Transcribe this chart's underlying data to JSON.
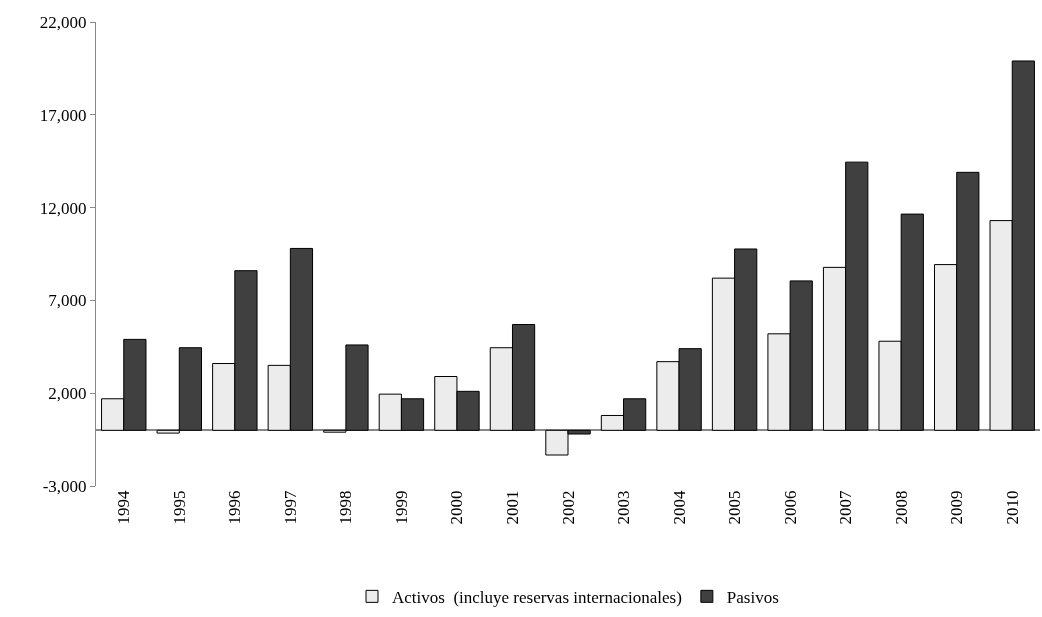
{
  "chart_data": {
    "type": "bar",
    "categories": [
      "1994",
      "1995",
      "1996",
      "1997",
      "1998",
      "1999",
      "2000",
      "2001",
      "2002",
      "2003",
      "2004",
      "2005",
      "2006",
      "2007",
      "2008",
      "2009",
      "2010"
    ],
    "series": [
      {
        "name": "Activos  (incluye reservas internacionales)",
        "color": "#ececec",
        "values": [
          1700,
          -150,
          3600,
          3500,
          -100,
          1950,
          2900,
          4450,
          -1330,
          800,
          3700,
          8200,
          5200,
          8780,
          4800,
          8930,
          11300
        ]
      },
      {
        "name": "Pasivos",
        "color": "#404040",
        "values": [
          4900,
          4450,
          8600,
          9800,
          4600,
          1700,
          2100,
          5700,
          -200,
          1700,
          4400,
          9770,
          8050,
          14450,
          11650,
          13900,
          19900
        ]
      }
    ],
    "ylim": [
      -3000,
      22000
    ],
    "yticks": [
      {
        "value": -3000,
        "label": "-3,000"
      },
      {
        "value": 2000,
        "label": "2,000"
      },
      {
        "value": 7000,
        "label": "7,000"
      },
      {
        "value": 12000,
        "label": "12,000"
      },
      {
        "value": 17000,
        "label": "17,000"
      },
      {
        "value": 22000,
        "label": "22,000"
      }
    ],
    "legend": "bottom"
  }
}
